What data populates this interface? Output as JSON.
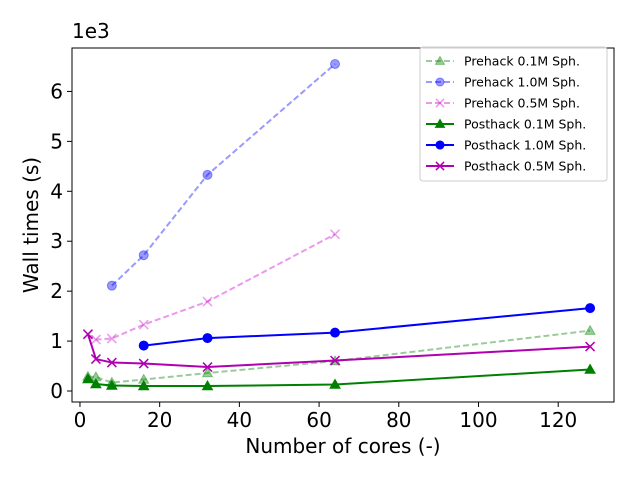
{
  "chart_data": {
    "type": "line",
    "title": "",
    "xlabel": "Number of cores (-)",
    "ylabel": "Wall times (s)",
    "y_offset_text": "1e3",
    "xlim": [
      -2,
      134
    ],
    "ylim": [
      -220,
      6870
    ],
    "x_ticks": [
      0,
      20,
      40,
      60,
      80,
      100,
      120
    ],
    "y_ticks": [
      0,
      1000,
      2000,
      3000,
      4000,
      5000,
      6000
    ],
    "y_tick_labels": [
      "0",
      "1",
      "2",
      "3",
      "4",
      "5",
      "6"
    ],
    "grid": false,
    "legend_position": "top-right",
    "series": [
      {
        "name": "Prehack 0.1M Sph.",
        "color": "#008000",
        "alpha": 0.4,
        "dashed": true,
        "marker": "triangle",
        "x": [
          2,
          4,
          8,
          16,
          32,
          64,
          128
        ],
        "y": [
          290,
          280,
          170,
          230,
          360,
          600,
          1210
        ]
      },
      {
        "name": "Prehack 1.0M Sph.",
        "color": "#0000ff",
        "alpha": 0.4,
        "dashed": true,
        "marker": "circle",
        "x": [
          8,
          16,
          32,
          64
        ],
        "y": [
          2110,
          2720,
          4330,
          6550
        ]
      },
      {
        "name": "Prehack 0.5M Sph.",
        "color": "#cc00cc",
        "alpha": 0.4,
        "dashed": true,
        "marker": "x",
        "x": [
          2,
          4,
          8,
          16,
          32,
          64
        ],
        "y": [
          1130,
          1030,
          1050,
          1330,
          1790,
          3140
        ]
      },
      {
        "name": "Posthack 0.1M Sph.",
        "color": "#008000",
        "alpha": 1,
        "dashed": false,
        "marker": "triangle",
        "x": [
          2,
          4,
          8,
          16,
          32,
          64,
          128
        ],
        "y": [
          240,
          140,
          110,
          100,
          100,
          130,
          430
        ]
      },
      {
        "name": "Posthack 1.0M Sph.",
        "color": "#0000ff",
        "alpha": 1,
        "dashed": false,
        "marker": "circle",
        "x": [
          16,
          32,
          64,
          128
        ],
        "y": [
          910,
          1060,
          1170,
          1660
        ]
      },
      {
        "name": "Posthack 0.5M Sph.",
        "color": "#b000b0",
        "alpha": 1,
        "dashed": false,
        "marker": "x",
        "x": [
          2,
          4,
          8,
          16,
          32,
          64,
          128
        ],
        "y": [
          1140,
          640,
          570,
          550,
          480,
          610,
          890
        ]
      }
    ]
  }
}
